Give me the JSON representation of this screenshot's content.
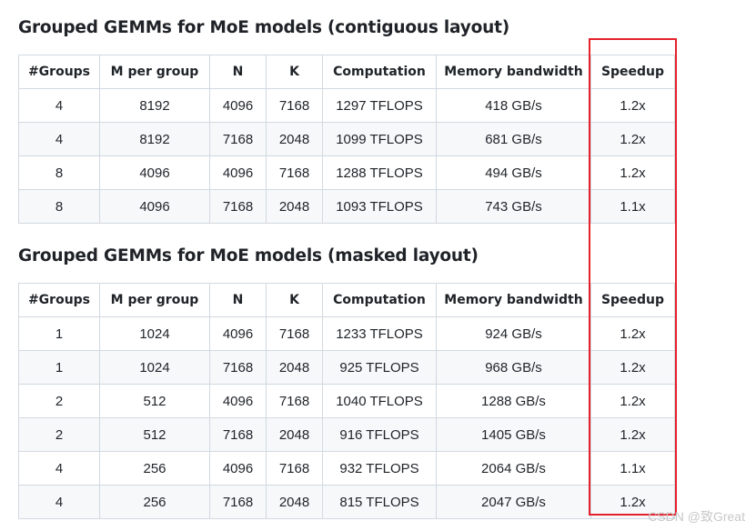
{
  "sections": [
    {
      "title": "Grouped GEMMs for MoE models (contiguous layout)",
      "headers": [
        "#Groups",
        "M per group",
        "N",
        "K",
        "Computation",
        "Memory bandwidth",
        "Speedup"
      ],
      "rows": [
        [
          "4",
          "8192",
          "4096",
          "7168",
          "1297 TFLOPS",
          "418 GB/s",
          "1.2x"
        ],
        [
          "4",
          "8192",
          "7168",
          "2048",
          "1099 TFLOPS",
          "681 GB/s",
          "1.2x"
        ],
        [
          "8",
          "4096",
          "4096",
          "7168",
          "1288 TFLOPS",
          "494 GB/s",
          "1.2x"
        ],
        [
          "8",
          "4096",
          "7168",
          "2048",
          "1093 TFLOPS",
          "743 GB/s",
          "1.1x"
        ]
      ]
    },
    {
      "title": "Grouped GEMMs for MoE models (masked layout)",
      "headers": [
        "#Groups",
        "M per group",
        "N",
        "K",
        "Computation",
        "Memory bandwidth",
        "Speedup"
      ],
      "rows": [
        [
          "1",
          "1024",
          "4096",
          "7168",
          "1233 TFLOPS",
          "924 GB/s",
          "1.2x"
        ],
        [
          "1",
          "1024",
          "7168",
          "2048",
          "925 TFLOPS",
          "968 GB/s",
          "1.2x"
        ],
        [
          "2",
          "512",
          "4096",
          "7168",
          "1040 TFLOPS",
          "1288 GB/s",
          "1.2x"
        ],
        [
          "2",
          "512",
          "7168",
          "2048",
          "916 TFLOPS",
          "1405 GB/s",
          "1.2x"
        ],
        [
          "4",
          "256",
          "4096",
          "7168",
          "932 TFLOPS",
          "2064 GB/s",
          "1.1x"
        ],
        [
          "4",
          "256",
          "7168",
          "2048",
          "815 TFLOPS",
          "2047 GB/s",
          "1.2x"
        ]
      ]
    }
  ],
  "highlight_color": "#e5212b",
  "watermark": "CSDN @致Great"
}
